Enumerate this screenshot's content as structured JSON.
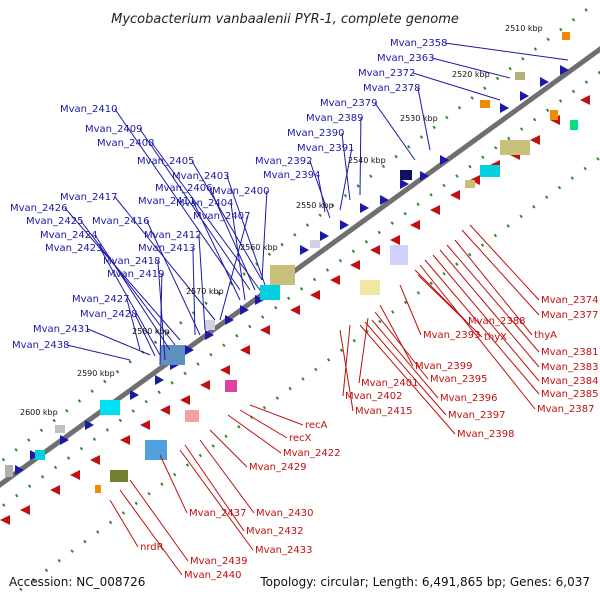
{
  "title": "Mycobacterium vanbaalenii PYR-1, complete genome",
  "footer": {
    "accession": "Accession: NC_008726",
    "topology": "Topology: circular; Length: 6,491,865 bp; Genes: 6,037"
  },
  "colors": {
    "forward_strand": "#1a1aa6",
    "reverse_strand": "#c01010",
    "backbone": "#808080"
  },
  "diagram": {
    "kbp_ticks": [
      "2510 kbp",
      "2520 kbp",
      "2530 kbp",
      "2540 kbp",
      "2550 kbp",
      "2560 kbp",
      "2570 kbp",
      "2580 kbp",
      "2590 kbp",
      "2600 kbp"
    ],
    "forward_labels": [
      "Mvan_2358",
      "Mvan_2363",
      "Mvan_2372",
      "Mvan_2378",
      "Mvan_2379",
      "Mvan_2389",
      "Mvan_2390",
      "Mvan_2391",
      "Mvan_2392",
      "Mvan_2394",
      "Mvan_2410",
      "Mvan_2409",
      "Mvan_2408",
      "Mvan_2405",
      "Mvan_2403",
      "Mvan_2406",
      "Mvan_2400",
      "Mvan_2411",
      "Mvan_2404",
      "Mvan_2417",
      "Mvan_2426",
      "Mvan_2407",
      "Mvan_2425",
      "Mvan_2416",
      "Mvan_2412",
      "Mvan_2424",
      "Mvan_2423",
      "Mvan_2413",
      "Mvan_2418",
      "Mvan_2419",
      "Mvan_2427",
      "Mvan_2428",
      "Mvan_2431",
      "Mvan_2438"
    ],
    "reverse_labels": [
      "Mvan_2374",
      "Mvan_2377",
      "thyA",
      "Mvan_2381",
      "Mvan_2383",
      "Mvan_2384",
      "Mvan_2385",
      "Mvan_2387",
      "Mvan_2388",
      "thyX",
      "Mvan_2393",
      "Mvan_2399",
      "Mvan_2395",
      "Mvan_2401",
      "Mvan_2396",
      "Mvan_2402",
      "Mvan_2397",
      "Mvan_2415",
      "Mvan_2398",
      "recA",
      "recX",
      "Mvan_2422",
      "Mvan_2429",
      "Mvan_2437",
      "Mvan_2430",
      "Mvan_2432",
      "nrdR",
      "Mvan_2433",
      "Mvan_2439",
      "Mvan_2440"
    ]
  }
}
